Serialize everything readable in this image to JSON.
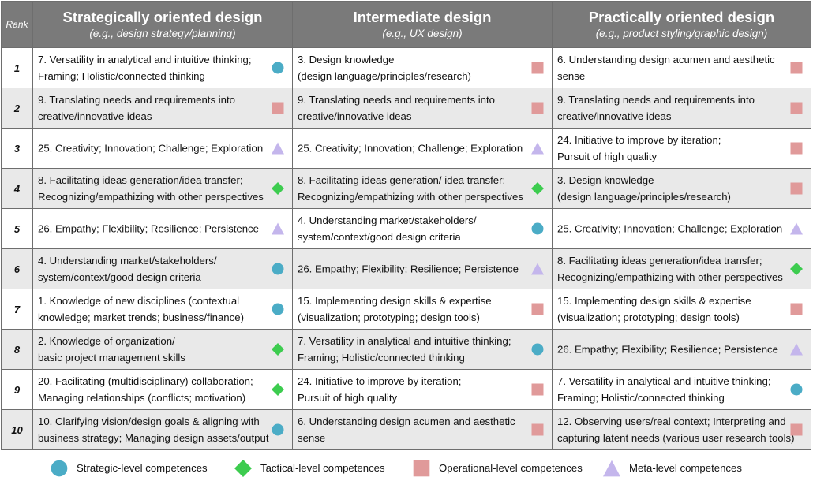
{
  "header": {
    "rank": "Rank",
    "columns": [
      {
        "title": "Strategically oriented design",
        "subtitle": "(e.g., design strategy/planning)"
      },
      {
        "title": "Intermediate design",
        "subtitle": "(e.g., UX design)"
      },
      {
        "title": "Practically oriented design",
        "subtitle": "(e.g., product styling/graphic design)"
      }
    ]
  },
  "colors": {
    "strategic": "#4bacc6",
    "tactical": "#3dcc4f",
    "operational": "#e09a9a",
    "meta": "#c4b6ec",
    "header_bg": "#7a7a7a",
    "alt_row": "#e9e9e9"
  },
  "rows": [
    {
      "rank": "1",
      "cells": [
        {
          "text": "7. Versatility in analytical and intuitive thinking;\nFraming; Holistic/connected thinking",
          "marker": "strategic"
        },
        {
          "text": "3. Design knowledge\n(design language/principles/research)",
          "marker": "operational"
        },
        {
          "text": "6. Understanding design acumen and aesthetic\nsense",
          "marker": "operational"
        }
      ]
    },
    {
      "rank": "2",
      "cells": [
        {
          "text": "9. Translating needs and requirements into\ncreative/innovative ideas",
          "marker": "operational"
        },
        {
          "text": "9. Translating needs and requirements into\ncreative/innovative ideas",
          "marker": "operational"
        },
        {
          "text": "9. Translating needs and requirements into\ncreative/innovative ideas",
          "marker": "operational"
        }
      ]
    },
    {
      "rank": "3",
      "cells": [
        {
          "text": "25. Creativity; Innovation; Challenge; Exploration",
          "marker": "meta"
        },
        {
          "text": "25. Creativity; Innovation; Challenge; Exploration",
          "marker": "meta"
        },
        {
          "text": "24. Initiative to improve by iteration;\nPursuit of high quality",
          "marker": "operational"
        }
      ]
    },
    {
      "rank": "4",
      "cells": [
        {
          "text": "8. Facilitating ideas generation/idea transfer;\nRecognizing/empathizing with other perspectives",
          "marker": "tactical"
        },
        {
          "text": "8. Facilitating ideas generation/ idea transfer;\nRecognizing/empathizing with other perspectives",
          "marker": "tactical"
        },
        {
          "text": "3. Design knowledge\n(design language/principles/research)",
          "marker": "operational"
        }
      ]
    },
    {
      "rank": "5",
      "cells": [
        {
          "text": "26. Empathy; Flexibility; Resilience; Persistence",
          "marker": "meta"
        },
        {
          "text": "4. Understanding market/stakeholders/\nsystem/context/good design criteria",
          "marker": "strategic"
        },
        {
          "text": "25. Creativity; Innovation; Challenge; Exploration",
          "marker": "meta"
        }
      ]
    },
    {
      "rank": "6",
      "cells": [
        {
          "text": "4. Understanding market/stakeholders/\nsystem/context/good design criteria",
          "marker": "strategic"
        },
        {
          "text": "26. Empathy; Flexibility; Resilience; Persistence",
          "marker": "meta"
        },
        {
          "text": "8. Facilitating ideas generation/idea transfer;\nRecognizing/empathizing with other perspectives",
          "marker": "tactical"
        }
      ]
    },
    {
      "rank": "7",
      "cells": [
        {
          "text": "1. Knowledge of new disciplines (contextual\nknowledge; market trends; business/finance)",
          "marker": "strategic"
        },
        {
          "text": "15. Implementing design skills & expertise\n(visualization; prototyping; design tools)",
          "marker": "operational"
        },
        {
          "text": "15. Implementing design skills & expertise\n(visualization; prototyping; design tools)",
          "marker": "operational"
        }
      ]
    },
    {
      "rank": "8",
      "cells": [
        {
          "text": "2. Knowledge of organization/\nbasic project management skills",
          "marker": "tactical"
        },
        {
          "text": "7. Versatility in analytical and intuitive thinking;\nFraming; Holistic/connected thinking",
          "marker": "strategic"
        },
        {
          "text": "26. Empathy; Flexibility; Resilience; Persistence",
          "marker": "meta"
        }
      ]
    },
    {
      "rank": "9",
      "cells": [
        {
          "text": "20. Facilitating (multidisciplinary) collaboration;\nManaging relationships (conflicts; motivation)",
          "marker": "tactical"
        },
        {
          "text": "24. Initiative to improve by iteration;\nPursuit of high quality",
          "marker": "operational"
        },
        {
          "text": "7. Versatility in analytical and intuitive thinking;\nFraming; Holistic/connected thinking",
          "marker": "strategic"
        }
      ]
    },
    {
      "rank": "10",
      "cells": [
        {
          "text": "10. Clarifying vision/design goals & aligning with\nbusiness strategy; Managing design assets/output",
          "marker": "strategic"
        },
        {
          "text": "6. Understanding design acumen and aesthetic\nsense",
          "marker": "operational"
        },
        {
          "text": "12. Observing users/real context; Interpreting and\ncapturing latent needs (various user research tools)",
          "marker": "operational"
        }
      ]
    }
  ],
  "legend": [
    {
      "marker": "strategic",
      "label": "Strategic-level competences"
    },
    {
      "marker": "tactical",
      "label": "Tactical-level competences"
    },
    {
      "marker": "operational",
      "label": "Operational-level competences"
    },
    {
      "marker": "meta",
      "label": "Meta-level competences"
    }
  ]
}
